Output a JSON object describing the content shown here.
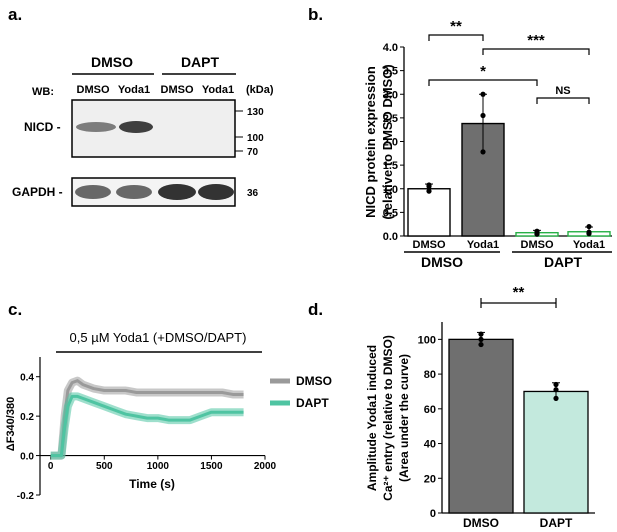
{
  "panels": {
    "a": {
      "letter": "a.",
      "group_left": "DMSO",
      "group_right": "DAPT",
      "wb_label": "WB:",
      "lane_labels": [
        "DMSO",
        "Yoda1",
        "DMSO",
        "Yoda1"
      ],
      "kda_label": "(kDa)",
      "nicd_label": "NICD -",
      "gapdh_label": "GAPDH -",
      "nicd_markers": [
        "130",
        "100",
        "70"
      ],
      "gapdh_marker": "36"
    },
    "b": {
      "letter": "b.",
      "group_left": "DMSO",
      "group_right": "DAPT"
    },
    "c": {
      "letter": "c.",
      "stimulus_label": "0,5 µM Yoda1 (+DMSO/DAPT)"
    },
    "d": {
      "letter": "d."
    }
  },
  "chart_data": [
    {
      "id": "b",
      "type": "bar",
      "categories": [
        "DMSO",
        "Yoda1",
        "DMSO",
        "Yoda1"
      ],
      "groups": [
        "DMSO",
        "DMSO",
        "DAPT",
        "DAPT"
      ],
      "values": [
        1.0,
        2.38,
        0.07,
        0.09
      ],
      "errors": [
        0.1,
        0.62,
        0.05,
        0.1
      ],
      "points": [
        [
          0.95,
          1.05,
          1.08
        ],
        [
          1.78,
          2.55,
          3.0
        ],
        [
          0.04,
          0.06,
          0.1
        ],
        [
          0.05,
          0.08,
          0.2
        ]
      ],
      "colors": [
        "#ffffff",
        "#6f6f6f",
        "#ffffff",
        "#ffffff"
      ],
      "edge_colors": [
        "#000000",
        "#000000",
        "#28b046",
        "#28b046"
      ],
      "ylabel": "NICD protein expression",
      "ylabel2": "(relative to DMSO DMSO)",
      "ylim": [
        0,
        4.0
      ],
      "yticks": [
        "0.0",
        "0.5",
        "1.0",
        "1.5",
        "2.0",
        "2.5",
        "3.0",
        "3.5",
        "4.0"
      ],
      "significance": [
        {
          "from": 0,
          "to": 1,
          "label": "**"
        },
        {
          "from": 1,
          "to": 3,
          "label": "***"
        },
        {
          "from": 0,
          "to": 2,
          "label": "*"
        },
        {
          "from": 2,
          "to": 3,
          "label": "NS"
        }
      ]
    },
    {
      "id": "c",
      "type": "line",
      "xlabel": "Time (s)",
      "ylabel": "ΔF340/380",
      "xlim": [
        -100,
        2000
      ],
      "ylim": [
        -0.2,
        0.5
      ],
      "xticks": [
        "0",
        "500",
        "1000",
        "1500",
        "2000"
      ],
      "yticks": [
        "-0.2",
        "0.0",
        "0.2",
        "0.4"
      ],
      "series": [
        {
          "name": "DMSO",
          "color": "#9a9a9a",
          "x": [
            0,
            100,
            130,
            160,
            200,
            250,
            300,
            400,
            500,
            600,
            700,
            800,
            900,
            1000,
            1100,
            1200,
            1300,
            1400,
            1500,
            1600,
            1700,
            1800
          ],
          "y": [
            0.0,
            0.0,
            0.2,
            0.33,
            0.37,
            0.38,
            0.36,
            0.34,
            0.33,
            0.33,
            0.33,
            0.32,
            0.32,
            0.32,
            0.32,
            0.32,
            0.32,
            0.32,
            0.32,
            0.32,
            0.31,
            0.31
          ]
        },
        {
          "name": "DAPT",
          "color": "#4fc4a2",
          "x": [
            0,
            100,
            130,
            160,
            200,
            250,
            300,
            400,
            500,
            600,
            700,
            800,
            900,
            1000,
            1100,
            1200,
            1300,
            1400,
            1500,
            1600,
            1700,
            1800
          ],
          "y": [
            0.0,
            0.0,
            0.14,
            0.25,
            0.3,
            0.3,
            0.29,
            0.27,
            0.25,
            0.23,
            0.21,
            0.2,
            0.19,
            0.19,
            0.18,
            0.18,
            0.18,
            0.2,
            0.22,
            0.22,
            0.22,
            0.22
          ]
        }
      ]
    },
    {
      "id": "d",
      "type": "bar",
      "categories": [
        "DMSO",
        "DAPT"
      ],
      "values": [
        100,
        70
      ],
      "errors": [
        4,
        5
      ],
      "points": [
        [
          97,
          100,
          103
        ],
        [
          66,
          71,
          74
        ]
      ],
      "colors": [
        "#6f6f6f",
        "#c3e9dd"
      ],
      "ylabel": "Amplitude Yoda1 induced",
      "ylabel2": "Ca²⁺ entry (relative to DMSO)",
      "ylabel3": "(Area under the curve)",
      "ylim": [
        0,
        110
      ],
      "yticks": [
        "0",
        "20",
        "40",
        "60",
        "80",
        "100"
      ],
      "significance": [
        {
          "from": 0,
          "to": 1,
          "label": "**"
        }
      ]
    }
  ]
}
